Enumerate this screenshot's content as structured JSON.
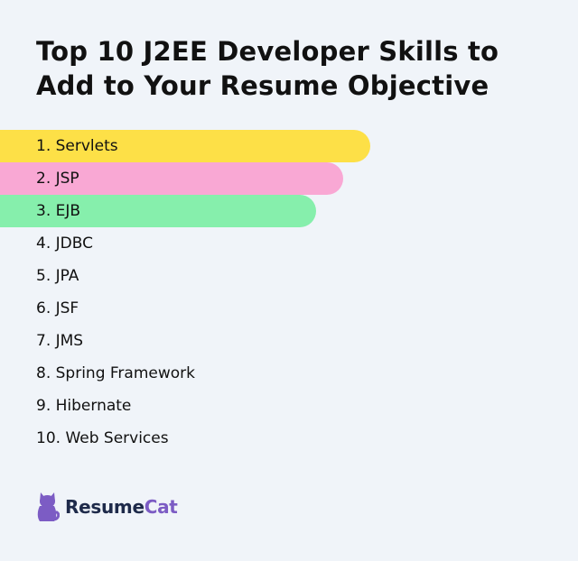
{
  "title": "Top 10 J2EE Developer Skills to Add to Your Resume Objective",
  "skills": [
    {
      "label": "1. Servlets",
      "highlight": "#fde047"
    },
    {
      "label": "2. JSP",
      "highlight": "#f9a8d4"
    },
    {
      "label": "3. EJB",
      "highlight": "#86efac"
    },
    {
      "label": "4. JDBC"
    },
    {
      "label": "5. JPA"
    },
    {
      "label": "6. JSF"
    },
    {
      "label": "7. JMS"
    },
    {
      "label": "8. Spring Framework"
    },
    {
      "label": "9. Hibernate"
    },
    {
      "label": "10. Web Services"
    }
  ],
  "brand": {
    "name_part1": "Resume",
    "name_part2": "Cat",
    "icon": "cat-logo-icon",
    "text_color": "#1e2a4a",
    "accent_color": "#7c5cc4"
  },
  "colors": {
    "background": "#f0f4f9"
  }
}
